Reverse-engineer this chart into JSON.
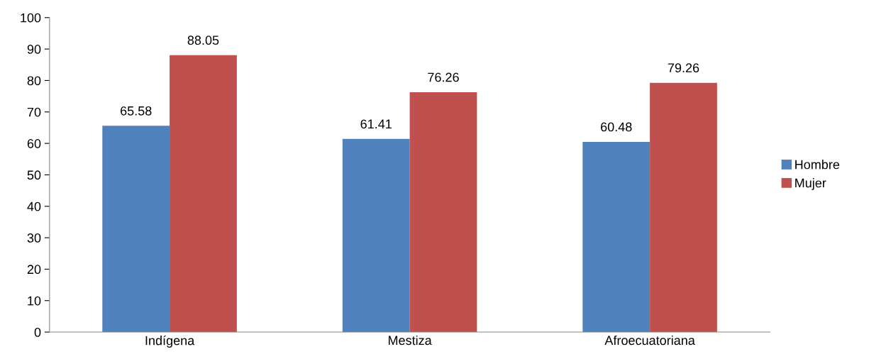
{
  "chart_data": {
    "type": "bar",
    "categories": [
      "Indígena",
      "Mestiza",
      "Afroecuatoriana"
    ],
    "series": [
      {
        "name": "Hombre",
        "color": "#4f81bd",
        "values": [
          65.58,
          61.41,
          60.48
        ]
      },
      {
        "name": "Mujer",
        "color": "#c0504d",
        "values": [
          88.05,
          76.26,
          79.26
        ]
      }
    ],
    "ylim": [
      0,
      100
    ],
    "yticks": [
      0,
      10,
      20,
      30,
      40,
      50,
      60,
      70,
      80,
      90,
      100
    ],
    "grid": false,
    "legend": "right",
    "data_labels": true
  }
}
